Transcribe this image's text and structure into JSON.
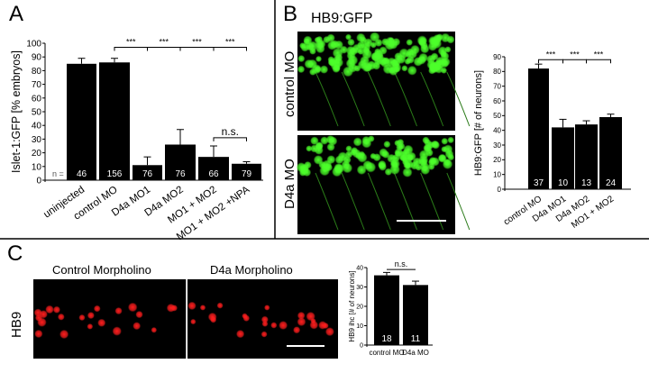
{
  "panels": {
    "a": "A",
    "b": "B",
    "c": "C"
  },
  "panel_b": {
    "image_title": "HB9:GFP",
    "row_labels": [
      "control MO",
      "D4a MO"
    ]
  },
  "panel_c": {
    "column_labels": [
      "Control Morpholino",
      "D4a Morpholino"
    ],
    "row_label": "HB9"
  },
  "colors": {
    "bar": "#000000",
    "gfp": "#4cff2a",
    "ihc": "#ff1e1e"
  },
  "chart_data": [
    {
      "type": "bar",
      "title": "",
      "xlabel": "",
      "ylabel": "Islet-1:GFP [% embryos]",
      "ylim": [
        0,
        100
      ],
      "yticks": [
        0,
        10,
        20,
        30,
        40,
        50,
        60,
        70,
        80,
        90,
        100
      ],
      "categories": [
        "uninjected",
        "control MO",
        "D4a MO1",
        "D4a MO2",
        "MO1 + MO2",
        "MO1 + MO2 +NPA"
      ],
      "values": [
        85,
        86,
        11,
        26,
        17,
        12
      ],
      "errors": [
        4,
        3,
        6,
        11,
        8,
        1.5
      ],
      "n_prefix": "n =",
      "n": [
        "46",
        "156",
        "76",
        "76",
        "66",
        "79"
      ],
      "significance": [
        {
          "from": 1,
          "to": 2,
          "label": "***",
          "level": 97
        },
        {
          "from": 2,
          "to": 3,
          "label": "***",
          "level": 97
        },
        {
          "from": 3,
          "to": 4,
          "label": "***",
          "level": 97
        },
        {
          "from": 4,
          "to": 5,
          "label": "***",
          "level": 97
        },
        {
          "from": 4,
          "to": 5,
          "label": "n.s.",
          "level": 31
        }
      ]
    },
    {
      "type": "bar",
      "title": "",
      "xlabel": "",
      "ylabel": "HB9:GFP [# of neurons]",
      "ylim": [
        0,
        90
      ],
      "yticks": [
        0,
        10,
        20,
        30,
        40,
        50,
        60,
        70,
        80,
        90
      ],
      "categories": [
        "control MO",
        "D4a MO1",
        "D4a MO2",
        "MO1 + MO2"
      ],
      "values": [
        82,
        42,
        44,
        49
      ],
      "errors": [
        3,
        5.5,
        2.5,
        2
      ],
      "n": [
        "37",
        "10",
        "13",
        "24"
      ],
      "significance": [
        {
          "from": 0,
          "to": 1,
          "label": "***",
          "level": 88
        },
        {
          "from": 1,
          "to": 2,
          "label": "***",
          "level": 88
        },
        {
          "from": 2,
          "to": 3,
          "label": "***",
          "level": 88
        }
      ]
    },
    {
      "type": "bar",
      "title": "",
      "xlabel": "",
      "ylabel": "HB9 ihc [# of neurons]",
      "ylim": [
        0,
        40
      ],
      "yticks": [
        0,
        10,
        20,
        30,
        40
      ],
      "categories": [
        "control MO",
        "D4a MO"
      ],
      "values": [
        36,
        31
      ],
      "errors": [
        1.5,
        2
      ],
      "n": [
        "18",
        "11"
      ],
      "significance": [
        {
          "from": 0,
          "to": 1,
          "label": "n.s.",
          "level": 39
        }
      ]
    }
  ]
}
